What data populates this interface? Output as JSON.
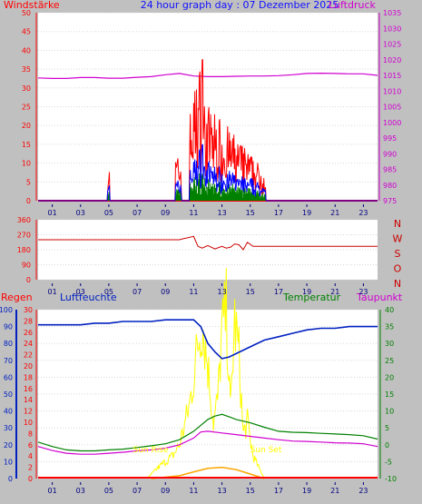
{
  "header": {
    "left_label": "Windstärke",
    "title": "24 hour graph day : 07 Dezember 2025",
    "right_label": "Luftdruck"
  },
  "panel3": {
    "label_regen": "Regen",
    "label_luftfeuchte": "Luftfeuchte",
    "label_temperatur": "Temperatur",
    "label_taupunkt": "Taupunkt",
    "sun_rise": "Sun Rise",
    "sun_set": "Sun Set"
  },
  "colors": {
    "background": "#c0c0c0",
    "plot": "#ffffff",
    "wind": "#ff0000",
    "gust_blue": "#0000ff",
    "avg_green": "#008000",
    "pressure": "#d000d0",
    "direction": "#cc0000",
    "humidity": "#0020c0",
    "temperature": "#008000",
    "dewpoint": "#d000d0",
    "solar": "#ffff00",
    "rain": "#ff0000",
    "uv": "#ffa500"
  },
  "chart_data": [
    {
      "id": "wind-pressure",
      "type": "line",
      "x_ticks": [
        "01",
        "03",
        "05",
        "07",
        "09",
        "11",
        "13",
        "15",
        "17",
        "19",
        "21",
        "23"
      ],
      "x_range_hours": [
        0,
        24
      ],
      "y_left": {
        "label": "Windstärke",
        "range": [
          0,
          50
        ],
        "ticks": [
          0,
          5,
          10,
          15,
          20,
          25,
          30,
          35,
          40,
          45,
          50
        ]
      },
      "y_right": {
        "label": "Luftdruck",
        "range": [
          975,
          1035
        ],
        "ticks": [
          975,
          980,
          985,
          990,
          995,
          1000,
          1005,
          1010,
          1015,
          1020,
          1025,
          1030,
          1035
        ]
      },
      "series": [
        {
          "id": "pressure",
          "axis": "right",
          "x": [
            0,
            1,
            2,
            3,
            4,
            5,
            6,
            7,
            8,
            9,
            10,
            11,
            12,
            13,
            14,
            15,
            16,
            17,
            18,
            19,
            20,
            21,
            22,
            23,
            24
          ],
          "y": [
            1014.2,
            1014.0,
            1014.0,
            1014.3,
            1014.3,
            1014.1,
            1014.1,
            1014.4,
            1014.6,
            1015.2,
            1015.6,
            1014.8,
            1014.6,
            1014.6,
            1014.7,
            1014.8,
            1014.8,
            1014.9,
            1015.2,
            1015.6,
            1015.7,
            1015.6,
            1015.5,
            1015.5,
            1015.0
          ]
        }
      ]
    },
    {
      "id": "wind-direction",
      "type": "line",
      "x_ticks": [
        "01",
        "03",
        "05",
        "07",
        "09",
        "11",
        "13",
        "15",
        "17",
        "19",
        "21",
        "23"
      ],
      "x_range_hours": [
        0,
        24
      ],
      "y_left": {
        "range": [
          0,
          360
        ],
        "ticks": [
          0,
          90,
          180,
          270,
          360
        ]
      },
      "y_right": {
        "ticks": [
          "N",
          "W",
          "S",
          "O",
          "N"
        ]
      },
      "series": [
        {
          "id": "direction",
          "axis": "left",
          "x": [
            0,
            10.0,
            10.2,
            11.0,
            11.1,
            11.3,
            11.6,
            12.0,
            12.5,
            13.0,
            13.3,
            13.6,
            13.9,
            14.2,
            14.5,
            14.8,
            15.2,
            16,
            20,
            24
          ],
          "y": [
            240,
            240,
            245,
            260,
            240,
            200,
            190,
            205,
            185,
            200,
            190,
            195,
            215,
            210,
            180,
            225,
            200,
            200,
            200,
            200
          ]
        }
      ]
    },
    {
      "id": "rain-humidity-temp",
      "type": "line",
      "x_ticks": [
        "01",
        "03",
        "05",
        "07",
        "09",
        "11",
        "13",
        "15",
        "17",
        "19",
        "21",
        "23"
      ],
      "x_range_hours": [
        0,
        24
      ],
      "y_left": {
        "labels": [
          "Regen",
          "Luftfeuchte"
        ],
        "range": [
          0,
          100
        ],
        "ticks": [
          0,
          10,
          20,
          30,
          40,
          50,
          60,
          70,
          80,
          90,
          100
        ],
        "secondary_ticks": [
          0,
          2,
          4,
          6,
          8,
          10,
          12,
          14,
          16,
          18,
          20,
          22,
          24,
          26,
          28,
          30
        ]
      },
      "y_right": {
        "labels": [
          "Temperatur",
          "Taupunkt"
        ],
        "range": [
          -10,
          40
        ],
        "ticks": [
          -10,
          -5,
          0,
          5,
          10,
          15,
          20,
          25,
          30,
          35,
          40
        ]
      },
      "series": [
        {
          "id": "humidity",
          "axis": "left",
          "x": [
            0,
            1,
            2,
            3,
            4,
            5,
            6,
            7,
            8,
            9,
            10,
            10.5,
            11,
            11.5,
            12,
            12.5,
            13,
            13.5,
            14,
            15,
            16,
            17,
            18,
            19,
            20,
            21,
            22,
            23,
            24
          ],
          "y": [
            91,
            91,
            91,
            91,
            92,
            92,
            93,
            93,
            93,
            94,
            94,
            94,
            94,
            90,
            80,
            75,
            71,
            72,
            74,
            78,
            82,
            84,
            86,
            88,
            89,
            89,
            90,
            90,
            90
          ]
        },
        {
          "id": "temperature",
          "axis": "right",
          "x": [
            0,
            1,
            2,
            3,
            4,
            5,
            6,
            7,
            8,
            9,
            10,
            11,
            12,
            12.5,
            13,
            13.5,
            14,
            15,
            16,
            17,
            18,
            19,
            20,
            21,
            22,
            23,
            24
          ],
          "y": [
            0.8,
            -0.5,
            -1.5,
            -1.8,
            -1.8,
            -1.5,
            -1.3,
            -0.8,
            -0.3,
            0.3,
            1.5,
            4.0,
            7.5,
            8.5,
            9.0,
            8.3,
            7.5,
            6.5,
            5.2,
            4.0,
            3.7,
            3.6,
            3.4,
            3.2,
            3.0,
            2.7,
            1.7
          ]
        },
        {
          "id": "dewpoint",
          "axis": "right",
          "x": [
            0,
            1,
            2,
            3,
            4,
            5,
            6,
            7,
            8,
            9,
            10,
            11,
            11.5,
            12,
            13,
            14,
            15,
            16,
            17,
            18,
            19,
            20,
            21,
            22,
            23,
            24
          ],
          "y": [
            -0.5,
            -1.7,
            -2.5,
            -2.8,
            -2.8,
            -2.5,
            -2.2,
            -1.8,
            -1.5,
            -1.0,
            0,
            2.0,
            3.8,
            4.0,
            3.5,
            3.0,
            2.5,
            2.0,
            1.5,
            1.1,
            1.0,
            0.8,
            0.6,
            0.5,
            0.3,
            -0.5
          ]
        },
        {
          "id": "solar",
          "axis": "left",
          "x": [
            7.7,
            8.5,
            9.5,
            10.0,
            10.3,
            10.7,
            11.0,
            11.3,
            11.6,
            12.0,
            12.4,
            12.7,
            13.0,
            13.3,
            13.6,
            13.9,
            14.2,
            14.5,
            14.8,
            15.2,
            15.6,
            16.0
          ],
          "y": [
            0,
            2,
            4,
            6,
            9,
            13,
            18,
            24,
            28,
            20,
            10,
            14,
            26,
            30,
            12,
            28,
            22,
            8,
            10,
            4,
            2,
            0
          ]
        },
        {
          "id": "uv",
          "axis": "left",
          "x": [
            8,
            10,
            11,
            12,
            13,
            14,
            15,
            16
          ],
          "y": [
            0,
            0.5,
            1.2,
            1.8,
            2.0,
            1.6,
            0.8,
            0
          ]
        }
      ],
      "markers": [
        {
          "label": "Sun Rise",
          "x_hours": 7.75
        },
        {
          "label": "Sun Set",
          "x_hours": 15.85
        }
      ]
    }
  ]
}
